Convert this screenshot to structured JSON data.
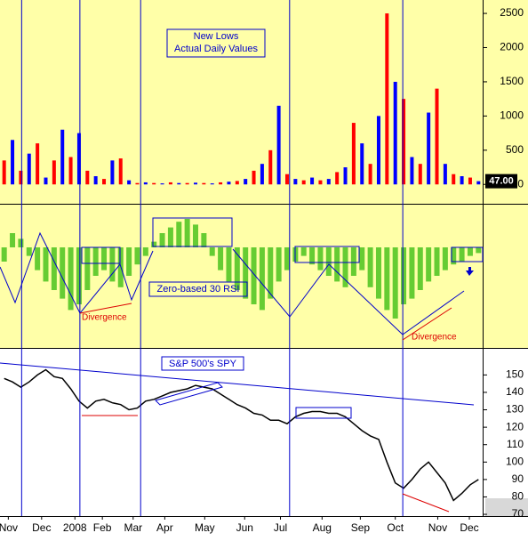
{
  "chart_data": [
    {
      "type": "bar",
      "annotation": [
        "New Lows",
        "Actual Daily Values"
      ],
      "values": [
        350,
        650,
        200,
        450,
        600,
        100,
        350,
        800,
        400,
        750,
        200,
        120,
        80,
        350,
        380,
        60,
        20,
        30,
        20,
        15,
        30,
        20,
        20,
        25,
        20,
        15,
        30,
        40,
        50,
        80,
        200,
        300,
        500,
        1150,
        150,
        80,
        60,
        100,
        60,
        80,
        180,
        250,
        900,
        600,
        300,
        1000,
        2500,
        1500,
        1250,
        400,
        300,
        1050,
        1400,
        300,
        150,
        120,
        100,
        47
      ],
      "colors": [
        "#ff0000",
        "#0000ff"
      ],
      "current": {
        "value": 47,
        "label": "47.00"
      },
      "ylim": [
        -270,
        2670
      ],
      "yticks": [
        0,
        500,
        1000,
        1500,
        2000,
        2500
      ]
    },
    {
      "type": "bar",
      "annotation": "Zero-based 30 RSI",
      "divergence_labels": [
        "Divergence",
        "Divergence"
      ],
      "values": [
        -5,
        5,
        3,
        -3,
        -8,
        -12,
        -15,
        -18,
        -22,
        -20,
        -15,
        -10,
        -8,
        -12,
        -14,
        -10,
        -6,
        -3,
        2,
        5,
        7,
        9,
        10,
        8,
        5,
        -3,
        -8,
        -12,
        -15,
        -18,
        -20,
        -22,
        -18,
        -12,
        -8,
        -5,
        -3,
        -6,
        -8,
        -10,
        -12,
        -14,
        -10,
        -8,
        -14,
        -18,
        -22,
        -25,
        -20,
        -18,
        -15,
        -12,
        -10,
        -8,
        -6,
        -5,
        -3,
        -2
      ],
      "color": "#66cc33",
      "ylim": [
        -35,
        15
      ]
    },
    {
      "type": "line",
      "annotation": "S&P 500's SPY",
      "values": [
        148,
        146,
        143,
        146,
        150,
        153,
        149,
        148,
        142,
        135,
        131,
        135,
        136,
        134,
        133,
        130,
        131,
        135,
        136,
        138,
        140,
        141,
        142,
        144,
        143,
        142,
        139,
        136,
        133,
        131,
        128,
        127,
        124,
        124,
        122,
        126,
        128,
        129,
        129,
        128,
        128,
        126,
        122,
        118,
        115,
        113,
        100,
        88,
        85,
        90,
        96,
        100,
        94,
        88,
        78,
        82,
        87,
        90
      ],
      "color": "#000000",
      "ylim": [
        69,
        165
      ],
      "yticks": [
        70,
        80,
        90,
        100,
        110,
        120,
        130,
        140,
        150
      ],
      "xlim": [
        0,
        58
      ],
      "xticks": [
        {
          "value": 1,
          "label": "Nov"
        },
        {
          "value": 5,
          "label": "Dec"
        },
        {
          "value": 9,
          "label": "2008"
        },
        {
          "value": 12.3,
          "label": "Feb"
        },
        {
          "value": 16,
          "label": "Mar"
        },
        {
          "value": 19.8,
          "label": "Apr"
        },
        {
          "value": 24.6,
          "label": "May"
        },
        {
          "value": 29.4,
          "label": "Jun"
        },
        {
          "value": 33.7,
          "label": "Jul"
        },
        {
          "value": 38.7,
          "label": "Aug"
        },
        {
          "value": 43.3,
          "label": "Sep"
        },
        {
          "value": 47.5,
          "label": "Oct"
        },
        {
          "value": 52.6,
          "label": "Nov"
        },
        {
          "value": 56.4,
          "label": "Dec"
        }
      ],
      "event_lines": [
        2.6,
        9.6,
        16.9,
        34.8,
        48.4
      ]
    }
  ]
}
